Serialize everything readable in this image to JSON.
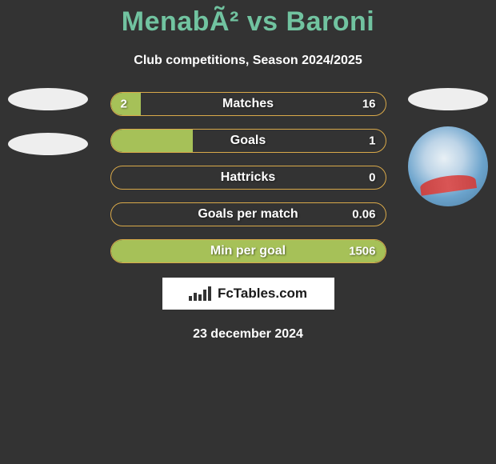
{
  "title": "MenabÃ² vs Baroni",
  "subtitle": "Club competitions, Season 2024/2025",
  "date": "23 december 2024",
  "source_label": "FcTables.com",
  "colors": {
    "background": "#333333",
    "title": "#71c3a0",
    "text": "#ffffff",
    "bar_fill": "#a6c158",
    "bar_border": "#d9a94a",
    "box_bg": "#ffffff",
    "logo_light": "#eeeeee"
  },
  "stats": [
    {
      "label": "Matches",
      "left_value": "2",
      "right_value": "16",
      "left_pct": 11,
      "fill_type": "left"
    },
    {
      "label": "Goals",
      "left_value": "",
      "right_value": "1",
      "left_pct": 30,
      "fill_type": "left"
    },
    {
      "label": "Hattricks",
      "left_value": "",
      "right_value": "0",
      "left_pct": 0,
      "fill_type": "none"
    },
    {
      "label": "Goals per match",
      "left_value": "",
      "right_value": "0.06",
      "left_pct": 0,
      "fill_type": "none"
    },
    {
      "label": "Min per goal",
      "left_value": "",
      "right_value": "1506",
      "left_pct": 100,
      "fill_type": "full"
    }
  ]
}
